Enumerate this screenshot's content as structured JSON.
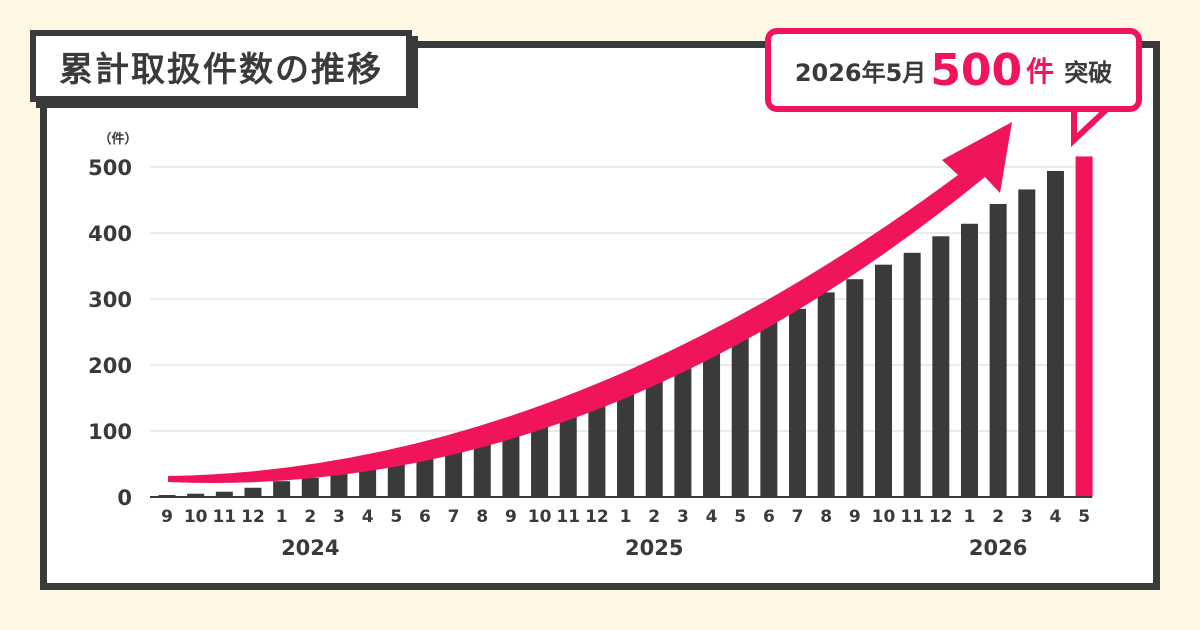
{
  "title": "累計取扱件数の推移",
  "callout": {
    "date": "2026年5月",
    "count": "500",
    "unit": "件",
    "suffix": "突破"
  },
  "colors": {
    "bar": "#3a3a3a",
    "highlight": "#f0145a",
    "grid": "#dddddd",
    "frame": "#3a3a3a"
  },
  "chart_data": {
    "type": "bar",
    "ylabel": "（件）",
    "ylim": [
      0,
      500
    ],
    "yticks": [
      0,
      100,
      200,
      300,
      400,
      500
    ],
    "grid": true,
    "categories": [
      "9",
      "10",
      "11",
      "12",
      "1",
      "2",
      "3",
      "4",
      "5",
      "6",
      "7",
      "8",
      "9",
      "10",
      "11",
      "12",
      "1",
      "2",
      "3",
      "4",
      "5",
      "6",
      "7",
      "8",
      "9",
      "10",
      "11",
      "12",
      "1",
      "2",
      "3",
      "4",
      "5"
    ],
    "values": [
      3,
      5,
      8,
      14,
      24,
      29,
      35,
      44,
      52,
      62,
      72,
      86,
      96,
      111,
      132,
      148,
      163,
      176,
      195,
      218,
      240,
      268,
      285,
      310,
      330,
      352,
      370,
      395,
      414,
      444,
      466,
      494,
      516
    ],
    "highlight_index": 32,
    "year_labels": [
      {
        "label": "2024",
        "index": 5
      },
      {
        "label": "2025",
        "index": 17
      },
      {
        "label": "2026",
        "index": 29
      }
    ]
  }
}
